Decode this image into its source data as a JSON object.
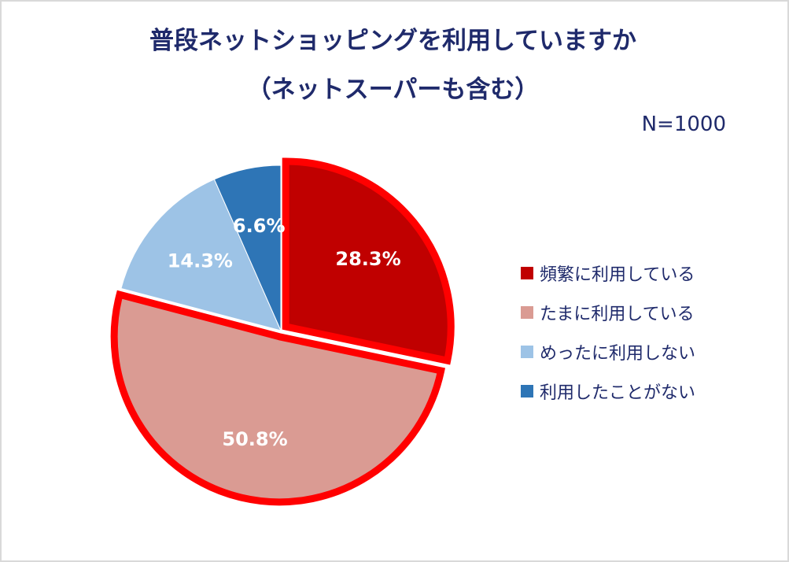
{
  "chart_data": {
    "type": "pie",
    "title": "普段ネットショッピングを利用していますか",
    "subtitle": "（ネットスーパーも含む）",
    "note": "N=1000",
    "legend_position": "right",
    "slices": [
      {
        "label": "頻繁に利用している",
        "value": 28.3,
        "display": "28.3%",
        "color": "#c00000",
        "highlight": true
      },
      {
        "label": "たまに利用している",
        "value": 50.8,
        "display": "50.8%",
        "color": "#da9b93",
        "highlight": true
      },
      {
        "label": "めったに利用しない",
        "value": 14.3,
        "display": "14.3%",
        "color": "#9dc3e6",
        "highlight": false
      },
      {
        "label": "利用したことがない",
        "value": 6.6,
        "display": "6.6%",
        "color": "#2e75b6",
        "highlight": false
      }
    ],
    "highlight_color": "#ff0000"
  }
}
